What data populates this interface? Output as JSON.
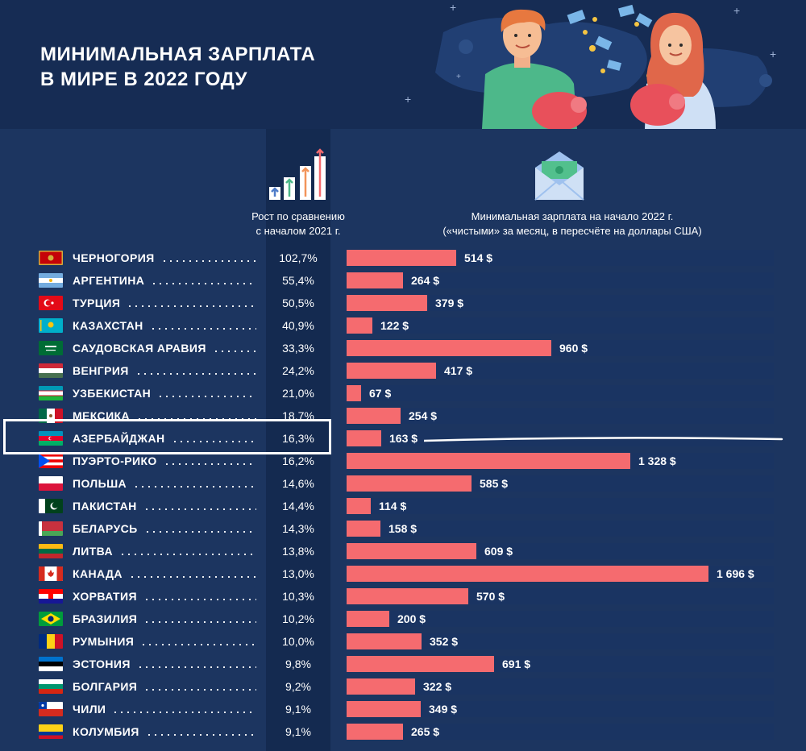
{
  "header": {
    "title_lines": [
      "МИНИМАЛЬНАЯ ЗАРПЛАТА",
      "В МИРЕ В 2022 ГОДУ"
    ]
  },
  "columns": {
    "growth_header": [
      "Рост по сравнению",
      "с началом 2021 г."
    ],
    "salary_header": [
      "Минимальная зарплата на начало 2022 г.",
      "(«чистыми» за месяц, в пересчёте на доллары США)"
    ]
  },
  "chart_data": {
    "type": "bar",
    "orientation": "horizontal",
    "title": "МИНИМАЛЬНАЯ ЗАРПЛАТА В МИРЕ В 2022 ГОДУ",
    "categories": [
      "ЧЕРНОГОРИЯ",
      "АРГЕНТИНА",
      "ТУРЦИЯ",
      "КАЗАХСТАН",
      "САУДОВСКАЯ АРАВИЯ",
      "ВЕНГРИЯ",
      "УЗБЕКИСТАН",
      "МЕКСИКА",
      "АЗЕРБАЙДЖАН",
      "ПУЭРТО-РИКО",
      "ПОЛЬША",
      "ПАКИСТАН",
      "БЕЛАРУСЬ",
      "ЛИТВА",
      "КАНАДА",
      "ХОРВАТИЯ",
      "БРАЗИЛИЯ",
      "РУМЫНИЯ",
      "ЭСТОНИЯ",
      "БОЛГАРИЯ",
      "ЧИЛИ",
      "КОЛУМБИЯ"
    ],
    "growth_labels": [
      "102,7%",
      "55,4%",
      "50,5%",
      "40,9%",
      "33,3%",
      "24,2%",
      "21,0%",
      "18,7%",
      "16,3%",
      "16,2%",
      "14,6%",
      "14,4%",
      "14,3%",
      "13,8%",
      "13,0%",
      "10,3%",
      "10,2%",
      "10,0%",
      "9,8%",
      "9,2%",
      "9,1%",
      "9,1%"
    ],
    "values": [
      514,
      264,
      379,
      122,
      960,
      417,
      67,
      254,
      163,
      1328,
      585,
      114,
      158,
      609,
      1696,
      570,
      200,
      352,
      691,
      322,
      349,
      265
    ],
    "value_labels": [
      "514 $",
      "264 $",
      "379 $",
      "122 $",
      "960 $",
      "417 $",
      "67 $",
      "254 $",
      "163 $",
      "1 328 $",
      "585 $",
      "114 $",
      "158 $",
      "609 $",
      "1 696 $",
      "570 $",
      "200 $",
      "352 $",
      "691 $",
      "322 $",
      "349 $",
      "265 $"
    ],
    "xlim": [
      0,
      2000
    ],
    "highlighted": "АЗЕРБАЙДЖАН",
    "colors": {
      "bar": "#f56b6f",
      "track": "#1a3462",
      "background": "#1c3560"
    }
  },
  "flags": [
    "montenegro-flag",
    "argentina-flag",
    "turkey-flag",
    "kazakhstan-flag",
    "saudi-arabia-flag",
    "hungary-flag",
    "uzbekistan-flag",
    "mexico-flag",
    "azerbaijan-flag",
    "puerto-rico-flag",
    "poland-flag",
    "pakistan-flag",
    "belarus-flag",
    "lithuania-flag",
    "canada-flag",
    "croatia-flag",
    "brazil-flag",
    "romania-flag",
    "estonia-flag",
    "bulgaria-flag",
    "chile-flag",
    "colombia-flag"
  ]
}
